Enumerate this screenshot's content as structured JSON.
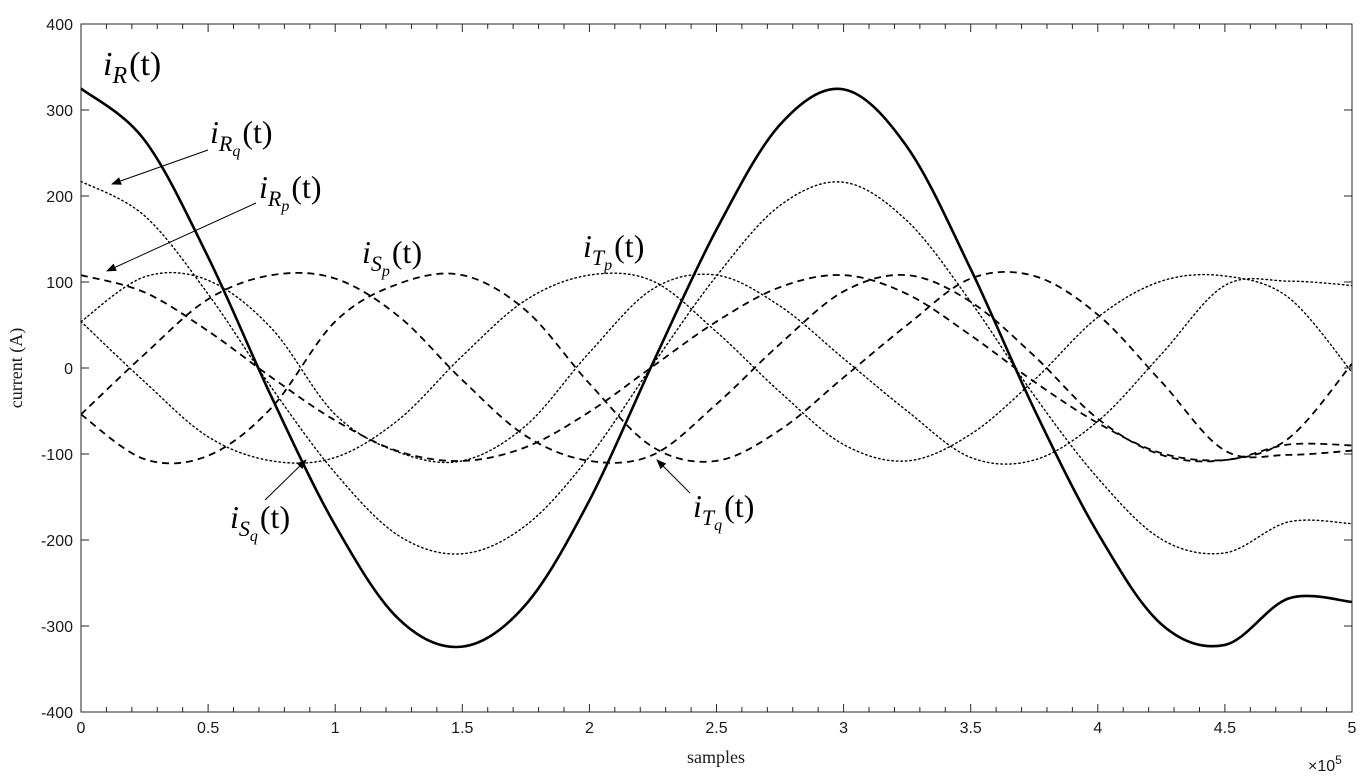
{
  "chart_data": {
    "type": "line",
    "xlabel": "samples",
    "ylabel": "current (A)",
    "exponent_label": "×10",
    "exponent_power": "5",
    "xlim": [
      0,
      5
    ],
    "ylim": [
      -400,
      400
    ],
    "x_ticks": [
      {
        "value": 0,
        "label": "0"
      },
      {
        "value": 0.5,
        "label": "0.5"
      },
      {
        "value": 1,
        "label": "1"
      },
      {
        "value": 1.5,
        "label": "1.5"
      },
      {
        "value": 2,
        "label": "2"
      },
      {
        "value": 2.5,
        "label": "2.5"
      },
      {
        "value": 3,
        "label": "3"
      },
      {
        "value": 3.5,
        "label": "3.5"
      },
      {
        "value": 4,
        "label": "4"
      },
      {
        "value": 4.5,
        "label": "4.5"
      },
      {
        "value": 5,
        "label": "5"
      }
    ],
    "y_ticks": [
      {
        "value": 400,
        "label": "400"
      },
      {
        "value": 300,
        "label": "300"
      },
      {
        "value": 200,
        "label": "200"
      },
      {
        "value": 100,
        "label": "100"
      },
      {
        "value": 0,
        "label": "0"
      },
      {
        "value": -100,
        "label": "-100"
      },
      {
        "value": -200,
        "label": "-200"
      },
      {
        "value": -300,
        "label": "-300"
      },
      {
        "value": -400,
        "label": "-400"
      }
    ],
    "grid": false,
    "x": [
      0,
      0.25,
      0.5,
      0.75,
      1.0,
      1.25,
      1.5,
      1.75,
      2.0,
      2.25,
      2.5,
      2.75,
      3.0,
      3.25,
      3.5,
      3.75,
      4.0,
      4.25,
      4.5,
      4.75,
      5.0
    ],
    "series": [
      {
        "key": "iR",
        "style": "solid",
        "width": 2.6,
        "values": [
          325,
          265,
          129,
          -34,
          -183,
          -292,
          -324,
          -275,
          -154,
          6,
          161,
          283,
          324,
          257,
          115,
          -48,
          -192,
          -298,
          -322,
          -268,
          -272
        ]
      },
      {
        "key": "iRq",
        "style": "dotted",
        "width": 1.4,
        "values": [
          217,
          177,
          86,
          -23,
          -122,
          -195,
          -216,
          -183,
          -103,
          4,
          107,
          189,
          216,
          171,
          77,
          -32,
          -128,
          -199,
          -215,
          -179,
          -181
        ]
      },
      {
        "key": "iRp",
        "style": "dashed",
        "width": 1.8,
        "values": [
          108,
          88,
          43,
          -11,
          -61,
          -97,
          -108,
          -92,
          -51,
          2,
          54,
          94,
          108,
          86,
          38,
          -16,
          -64,
          -99,
          -107,
          -89,
          -90
        ]
      },
      {
        "key": "iSq",
        "style": "dotted",
        "width": 1.4,
        "values": [
          54,
          106,
          102,
          46,
          -54,
          -98,
          -108,
          -67,
          18,
          92,
          108,
          72,
          11,
          -50,
          -104,
          -107,
          -62,
          16,
          96,
          101,
          96
        ]
      },
      {
        "key": "iSp",
        "style": "dashed",
        "width": 1.8,
        "values": [
          -54,
          16,
          80,
          108,
          104,
          60,
          -14,
          -79,
          -108,
          -101,
          -42,
          28,
          89,
          108,
          77,
          14,
          -59,
          -101,
          -107,
          -82,
          5
        ]
      },
      {
        "key": "iTq",
        "style": "dotted",
        "width": 1.4,
        "values": [
          54,
          -16,
          -80,
          -108,
          -104,
          -60,
          14,
          79,
          108,
          101,
          42,
          -28,
          -89,
          -108,
          -77,
          -14,
          59,
          101,
          107,
          82,
          -5
        ]
      },
      {
        "key": "iTp",
        "style": "dashed",
        "width": 1.8,
        "values": [
          -54,
          -106,
          -102,
          -46,
          54,
          98,
          108,
          67,
          -18,
          -92,
          -108,
          -72,
          -11,
          50,
          104,
          107,
          62,
          -16,
          -96,
          -101,
          -96
        ]
      }
    ],
    "annotations": [
      {
        "key": "iR",
        "base": "i",
        "sub": "R",
        "subsub": "",
        "tail": "(t)"
      },
      {
        "key": "iRq",
        "base": "i",
        "sub": "R",
        "subsub": "q",
        "tail": "(t)"
      },
      {
        "key": "iRp",
        "base": "i",
        "sub": "R",
        "subsub": "p",
        "tail": "(t)"
      },
      {
        "key": "iSp",
        "base": "i",
        "sub": "S",
        "subsub": "p",
        "tail": "(t)"
      },
      {
        "key": "iTp",
        "base": "i",
        "sub": "T",
        "subsub": "p",
        "tail": "(t)"
      },
      {
        "key": "iSq",
        "base": "i",
        "sub": "S",
        "subsub": "q",
        "tail": "(t)"
      },
      {
        "key": "iTq",
        "base": "i",
        "sub": "T",
        "subsub": "q",
        "tail": "(t)"
      }
    ]
  }
}
